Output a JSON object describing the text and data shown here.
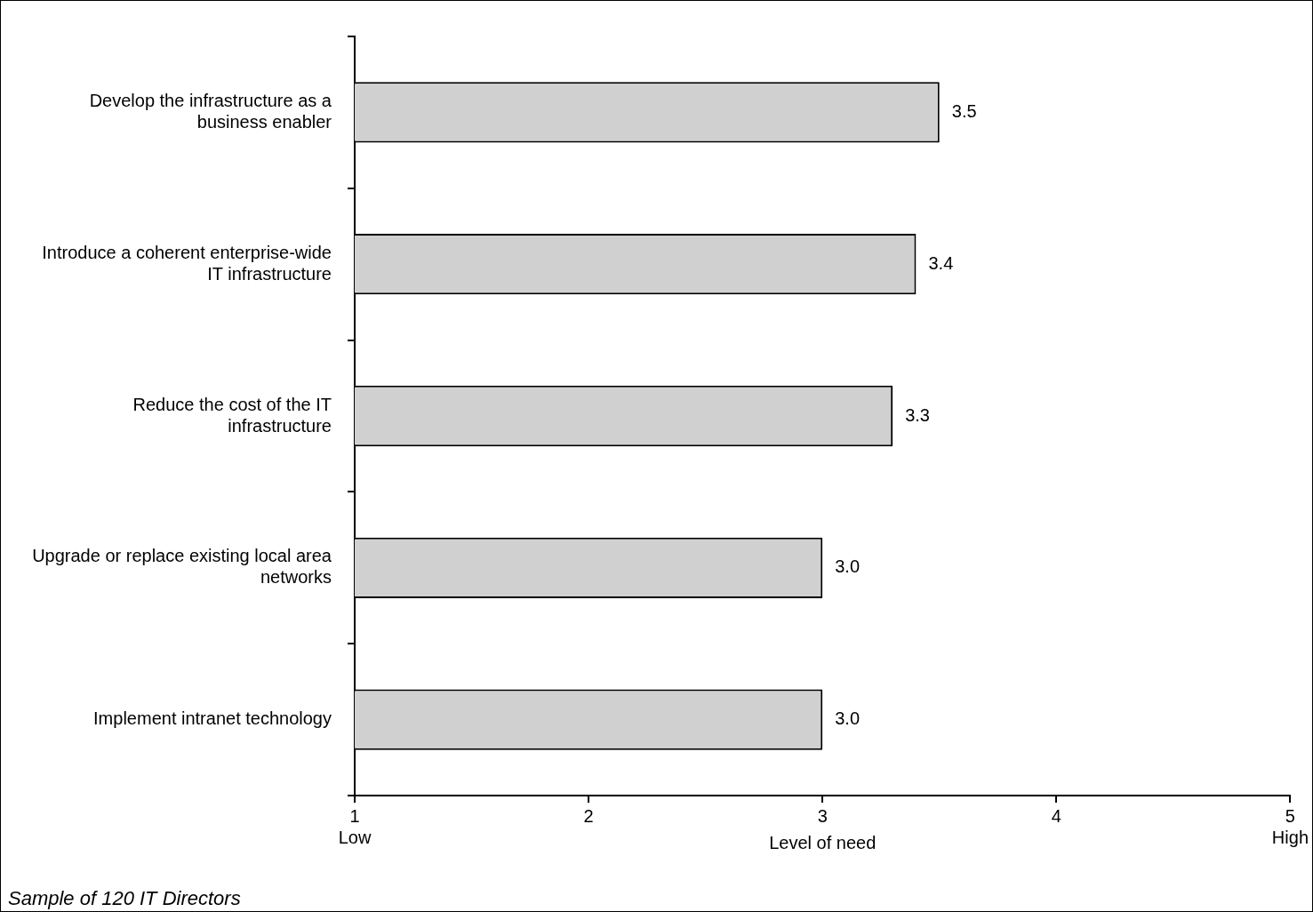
{
  "chart_data": {
    "type": "bar",
    "orientation": "horizontal",
    "xlabel": "Level of need",
    "categories": [
      "Develop the infrastructure as a business enabler",
      "Introduce a coherent enterprise-wide IT infrastructure",
      "Reduce the cost of the IT infrastructure",
      "Upgrade or replace existing local area networks",
      "Implement intranet technology"
    ],
    "values": [
      3.5,
      3.4,
      3.3,
      3.0,
      3.0
    ],
    "value_labels": [
      "3.5",
      "3.4",
      "3.3",
      "3.0",
      "3.0"
    ],
    "color": "#d0d0d0",
    "xlim": [
      1,
      5
    ],
    "xticks": [
      {
        "value": 1,
        "label": "1\nLow"
      },
      2,
      3,
      4,
      {
        "value": 5,
        "label": "5\nHigh"
      }
    ],
    "grid": false,
    "annotations": [
      "Sample of 120 IT Directors"
    ]
  }
}
